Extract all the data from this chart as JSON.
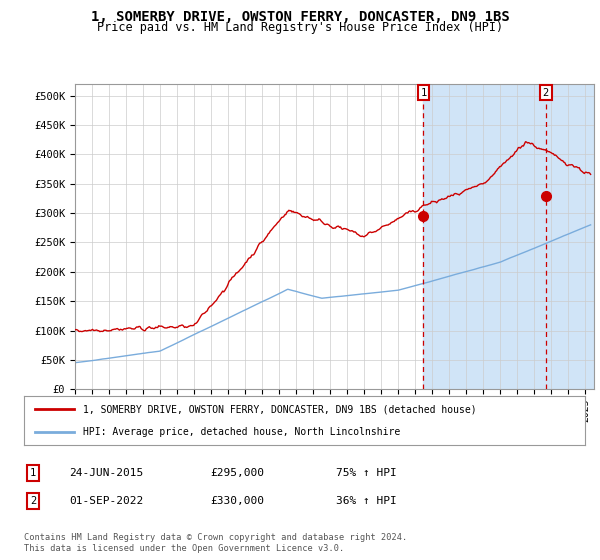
{
  "title": "1, SOMERBY DRIVE, OWSTON FERRY, DONCASTER, DN9 1BS",
  "subtitle": "Price paid vs. HM Land Registry's House Price Index (HPI)",
  "title_fontsize": 10,
  "subtitle_fontsize": 8.5,
  "ylabel_ticks": [
    "£0",
    "£50K",
    "£100K",
    "£150K",
    "£200K",
    "£250K",
    "£300K",
    "£350K",
    "£400K",
    "£450K",
    "£500K"
  ],
  "ytick_values": [
    0,
    50000,
    100000,
    150000,
    200000,
    250000,
    300000,
    350000,
    400000,
    450000,
    500000
  ],
  "ylim": [
    0,
    520000
  ],
  "xlim_start": 1995.0,
  "xlim_end": 2025.5,
  "background_color": "#ffffff",
  "plot_bg_color": "#ffffff",
  "grid_color": "#cccccc",
  "hpi_line_color": "#7aacdc",
  "price_line_color": "#cc0000",
  "shade_color": "#d0e4f7",
  "marker1_date": 2015.48,
  "marker2_date": 2022.67,
  "marker1_price": 295000,
  "marker2_price": 330000,
  "legend_label_red": "1, SOMERBY DRIVE, OWSTON FERRY, DONCASTER, DN9 1BS (detached house)",
  "legend_label_blue": "HPI: Average price, detached house, North Lincolnshire",
  "note1_date": "24-JUN-2015",
  "note1_price": "£295,000",
  "note1_hpi": "75% ↑ HPI",
  "note2_date": "01-SEP-2022",
  "note2_price": "£330,000",
  "note2_hpi": "36% ↑ HPI",
  "footer": "Contains HM Land Registry data © Crown copyright and database right 2024.\nThis data is licensed under the Open Government Licence v3.0."
}
